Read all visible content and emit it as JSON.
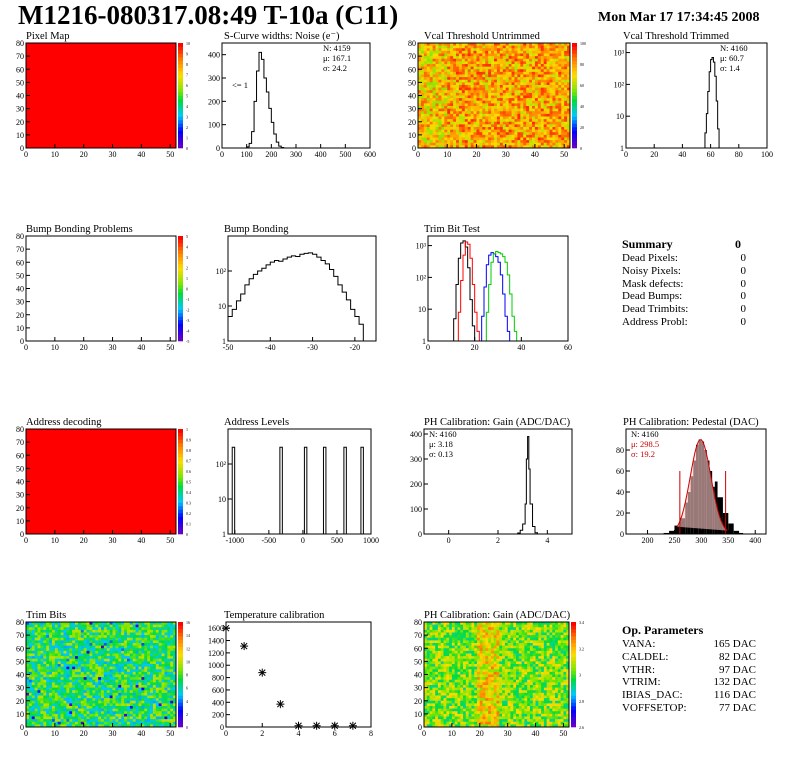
{
  "header": {
    "title": "M1216-080317.08:49 T-10a (C11)",
    "date": "Mon Mar 17 17:34:45 2008"
  },
  "summary": {
    "title": "Summary",
    "value": "0",
    "rows": [
      {
        "label": "Dead Pixels:",
        "value": "0"
      },
      {
        "label": "Noisy Pixels:",
        "value": "0"
      },
      {
        "label": "Mask defects:",
        "value": "0"
      },
      {
        "label": "Dead Bumps:",
        "value": "0"
      },
      {
        "label": "Dead Trimbits:",
        "value": "0"
      },
      {
        "label": "Address Probl:",
        "value": "0"
      }
    ]
  },
  "op_params": {
    "title": "Op. Parameters",
    "rows": [
      {
        "label": "VANA:",
        "value": "165 DAC"
      },
      {
        "label": "CALDEL:",
        "value": "82 DAC"
      },
      {
        "label": "VTHR:",
        "value": "97 DAC"
      },
      {
        "label": "VTRIM:",
        "value": "132 DAC"
      },
      {
        "label": "IBIAS_DAC:",
        "value": "116 DAC"
      },
      {
        "label": "VOFFSETOP:",
        "value": "77 DAC"
      }
    ]
  },
  "chart_data": [
    {
      "id": "pixel-map",
      "type": "heatmap",
      "title": "Pixel Map",
      "fill": "#ff0000",
      "xlim": [
        0,
        52
      ],
      "ylim": [
        0,
        80
      ],
      "xticks": [
        "0",
        "10",
        "20",
        "30",
        "40",
        "50"
      ],
      "yticks": [
        "0",
        "10",
        "20",
        "30",
        "40",
        "50",
        "60",
        "70",
        "80"
      ],
      "zticks": [
        "0",
        "1",
        "2",
        "3",
        "4",
        "5",
        "6",
        "7",
        "8",
        "9",
        "10"
      ]
    },
    {
      "id": "scurve",
      "type": "line",
      "title": "S-Curve widths: Noise (e⁻)",
      "xlim": [
        0,
        600
      ],
      "ylim": [
        0,
        450
      ],
      "xticks": [
        "0",
        "100",
        "200",
        "300",
        "400",
        "500",
        "600"
      ],
      "yticks": [
        "0",
        "100",
        "200",
        "300",
        "400"
      ],
      "stats": [
        "N: 4159",
        "μ: 167.1",
        "σ: 24.2"
      ],
      "annotation": "<= 1",
      "x": [
        90,
        100,
        110,
        120,
        130,
        140,
        150,
        160,
        170,
        180,
        190,
        200,
        210,
        220,
        230,
        240,
        250
      ],
      "y": [
        0,
        5,
        20,
        70,
        200,
        330,
        410,
        380,
        300,
        240,
        170,
        110,
        60,
        25,
        8,
        2,
        0
      ]
    },
    {
      "id": "vcal-untrimmed",
      "type": "heatmap",
      "title": "Vcal Threshold Untrimmed",
      "xlim": [
        0,
        52
      ],
      "ylim": [
        0,
        80
      ],
      "xticks": [
        "0",
        "10",
        "20",
        "30",
        "40",
        "50"
      ],
      "yticks": [
        "0",
        "10",
        "20",
        "30",
        "40",
        "50",
        "60",
        "70",
        "80"
      ],
      "zticks": [
        "0",
        "20",
        "40",
        "60",
        "80",
        "100"
      ]
    },
    {
      "id": "vcal-trimmed",
      "type": "line",
      "title": "Vcal Threshold Trimmed",
      "log": true,
      "xlim": [
        0,
        100
      ],
      "ylim": [
        1,
        2000
      ],
      "xticks": [
        "0",
        "20",
        "40",
        "60",
        "80",
        "100"
      ],
      "yticks": [
        "1",
        "10",
        "10²",
        "10³"
      ],
      "stats": [
        "N: 4160",
        "μ: 60.7",
        "σ:  1.4"
      ],
      "x": [
        55,
        56,
        57,
        58,
        59,
        60,
        61,
        62,
        63,
        64,
        65,
        66
      ],
      "y": [
        1,
        3,
        12,
        60,
        250,
        600,
        700,
        500,
        180,
        30,
        4,
        1
      ]
    },
    {
      "id": "bump-problems",
      "type": "heatmap",
      "title": "Bump Bonding Problems",
      "xlim": [
        0,
        52
      ],
      "ylim": [
        0,
        80
      ],
      "xticks": [
        "0",
        "10",
        "20",
        "30",
        "40",
        "50"
      ],
      "yticks": [
        "0",
        "10",
        "20",
        "30",
        "40",
        "50",
        "60",
        "70",
        "80"
      ],
      "zticks": [
        "-5",
        "-4",
        "-3",
        "-2",
        "-1",
        "0",
        "1",
        "2",
        "3",
        "4",
        "5"
      ]
    },
    {
      "id": "bump-bonding",
      "type": "line",
      "title": "Bump Bonding",
      "log": true,
      "xlim": [
        -50,
        -15
      ],
      "ylim": [
        1,
        1000
      ],
      "xticks": [
        "-50",
        "-40",
        "-30",
        "-20"
      ],
      "yticks": [
        "1",
        "10",
        "10²"
      ],
      "x": [
        -50,
        -49,
        -48,
        -47,
        -46,
        -45,
        -44,
        -43,
        -42,
        -41,
        -40,
        -39,
        -38,
        -37,
        -36,
        -35,
        -34,
        -33,
        -32,
        -31,
        -30,
        -29,
        -28,
        -27,
        -26,
        -25,
        -24,
        -23,
        -22,
        -21,
        -20,
        -19,
        -18
      ],
      "y": [
        5,
        8,
        14,
        22,
        40,
        60,
        80,
        100,
        120,
        150,
        180,
        200,
        190,
        220,
        250,
        270,
        260,
        300,
        320,
        330,
        300,
        250,
        200,
        160,
        110,
        70,
        40,
        25,
        15,
        8,
        5,
        3,
        1
      ]
    },
    {
      "id": "trim-bit-test",
      "type": "line",
      "title": "Trim Bit Test",
      "log": true,
      "xlim": [
        0,
        60
      ],
      "ylim": [
        1,
        2000
      ],
      "xticks": [
        "0",
        "20",
        "40",
        "60"
      ],
      "yticks": [
        "1",
        "10",
        "10²",
        "10³"
      ],
      "series": [
        {
          "color": "#000000",
          "x": [
            10,
            11,
            12,
            13,
            14,
            15,
            16,
            17,
            18,
            19,
            20
          ],
          "y": [
            1,
            5,
            60,
            400,
            1200,
            1400,
            900,
            200,
            20,
            3,
            1
          ]
        },
        {
          "color": "#ff0000",
          "x": [
            12,
            13,
            14,
            15,
            16,
            17,
            18,
            19,
            20,
            21,
            22
          ],
          "y": [
            1,
            8,
            80,
            500,
            1300,
            1100,
            400,
            60,
            8,
            2,
            1
          ]
        },
        {
          "color": "#0000ff",
          "x": [
            22,
            23,
            24,
            25,
            26,
            27,
            28,
            29,
            30,
            31,
            32,
            33,
            34,
            35
          ],
          "y": [
            1,
            6,
            50,
            250,
            500,
            600,
            550,
            450,
            300,
            120,
            30,
            6,
            2,
            1
          ]
        },
        {
          "color": "#00cc00",
          "x": [
            24,
            25,
            26,
            27,
            28,
            29,
            30,
            31,
            32,
            33,
            34,
            35,
            36,
            37,
            38
          ],
          "y": [
            1,
            8,
            60,
            300,
            550,
            650,
            600,
            550,
            450,
            300,
            120,
            30,
            6,
            2,
            1
          ]
        }
      ]
    },
    {
      "id": "address-decoding",
      "type": "heatmap",
      "title": "Address decoding",
      "fill": "#ff0000",
      "xlim": [
        0,
        52
      ],
      "ylim": [
        0,
        80
      ],
      "xticks": [
        "0",
        "10",
        "20",
        "30",
        "40",
        "50"
      ],
      "yticks": [
        "0",
        "10",
        "20",
        "30",
        "40",
        "50",
        "60",
        "70",
        "80"
      ],
      "zticks": [
        "0",
        "0.1",
        "0.2",
        "0.3",
        "0.4",
        "0.5",
        "0.6",
        "0.7",
        "0.8",
        "0.9",
        "1"
      ]
    },
    {
      "id": "address-levels",
      "type": "line",
      "title": "Address Levels",
      "log": true,
      "xlim": [
        -1100,
        1000
      ],
      "ylim": [
        1,
        1000
      ],
      "xticks": [
        "-1000",
        "-500",
        "0",
        "500",
        "1000"
      ],
      "yticks": [
        "1",
        "10",
        "10²"
      ],
      "peaks": [
        -1020,
        -320,
        40,
        320,
        620,
        870
      ],
      "peak_height": 300
    },
    {
      "id": "ph-gain",
      "type": "line",
      "title": "PH Calibration: Gain (ADC/DAC)",
      "xlim": [
        -1,
        5
      ],
      "ylim": [
        0,
        420
      ],
      "xticks": [
        "0",
        "2",
        "4"
      ],
      "yticks": [
        "0",
        "100",
        "200",
        "300",
        "400"
      ],
      "stats": [
        "N: 4160",
        "μ: 3.18",
        "σ: 0.13"
      ],
      "x": [
        2.7,
        2.8,
        2.9,
        3.0,
        3.1,
        3.15,
        3.2,
        3.25,
        3.3,
        3.4,
        3.5,
        3.6
      ],
      "y": [
        0,
        4,
        15,
        40,
        120,
        300,
        390,
        260,
        120,
        30,
        5,
        0
      ]
    },
    {
      "id": "ph-pedestal",
      "type": "bar",
      "title": "PH Calibration: Pedestal (DAC)",
      "xlim": [
        160,
        420
      ],
      "ylim": [
        0,
        100
      ],
      "xticks": [
        "200",
        "250",
        "300",
        "350",
        "400"
      ],
      "yticks": [
        "0",
        "20",
        "40",
        "60",
        "80"
      ],
      "stats": [
        "N: 4160",
        "μ: 298.5",
        "σ: 19.2"
      ],
      "markers": [
        260,
        345
      ],
      "x": [
        230,
        240,
        250,
        260,
        270,
        275,
        280,
        285,
        290,
        295,
        300,
        305,
        310,
        315,
        320,
        325,
        330,
        340,
        350,
        360,
        370
      ],
      "y": [
        1,
        3,
        8,
        15,
        30,
        40,
        55,
        70,
        85,
        90,
        88,
        80,
        70,
        60,
        45,
        50,
        35,
        20,
        10,
        3,
        1
      ]
    },
    {
      "id": "trim-bits",
      "type": "heatmap",
      "title": "Trim Bits",
      "xlim": [
        0,
        52
      ],
      "ylim": [
        0,
        80
      ],
      "xticks": [
        "0",
        "10",
        "20",
        "30",
        "40",
        "50"
      ],
      "yticks": [
        "0",
        "10",
        "20",
        "30",
        "40",
        "50",
        "60",
        "70",
        "80"
      ],
      "zticks": [
        "0",
        "2",
        "4",
        "6",
        "8",
        "10",
        "12",
        "14",
        "16"
      ]
    },
    {
      "id": "temp-calibration",
      "type": "scatter",
      "title": "Temperature calibration",
      "xlim": [
        0,
        8
      ],
      "ylim": [
        0,
        1700
      ],
      "xticks": [
        "0",
        "2",
        "4",
        "6",
        "8"
      ],
      "yticks": [
        "0",
        "200",
        "400",
        "600",
        "800",
        "1000",
        "1200",
        "1400",
        "1600"
      ],
      "x": [
        0,
        1,
        2,
        3,
        4,
        5,
        6,
        7
      ],
      "y": [
        1600,
        1310,
        880,
        370,
        20,
        20,
        20,
        20
      ]
    },
    {
      "id": "ph-gain-map",
      "type": "heatmap",
      "title": "PH Calibration: Gain (ADC/DAC)",
      "xlim": [
        0,
        52
      ],
      "ylim": [
        0,
        80
      ],
      "xticks": [
        "0",
        "10",
        "20",
        "30",
        "40",
        "50"
      ],
      "yticks": [
        "0",
        "10",
        "20",
        "30",
        "40",
        "50",
        "60",
        "70",
        "80"
      ],
      "zticks": [
        "2.6",
        "2.8",
        "3",
        "3.2",
        "3.4"
      ]
    }
  ]
}
